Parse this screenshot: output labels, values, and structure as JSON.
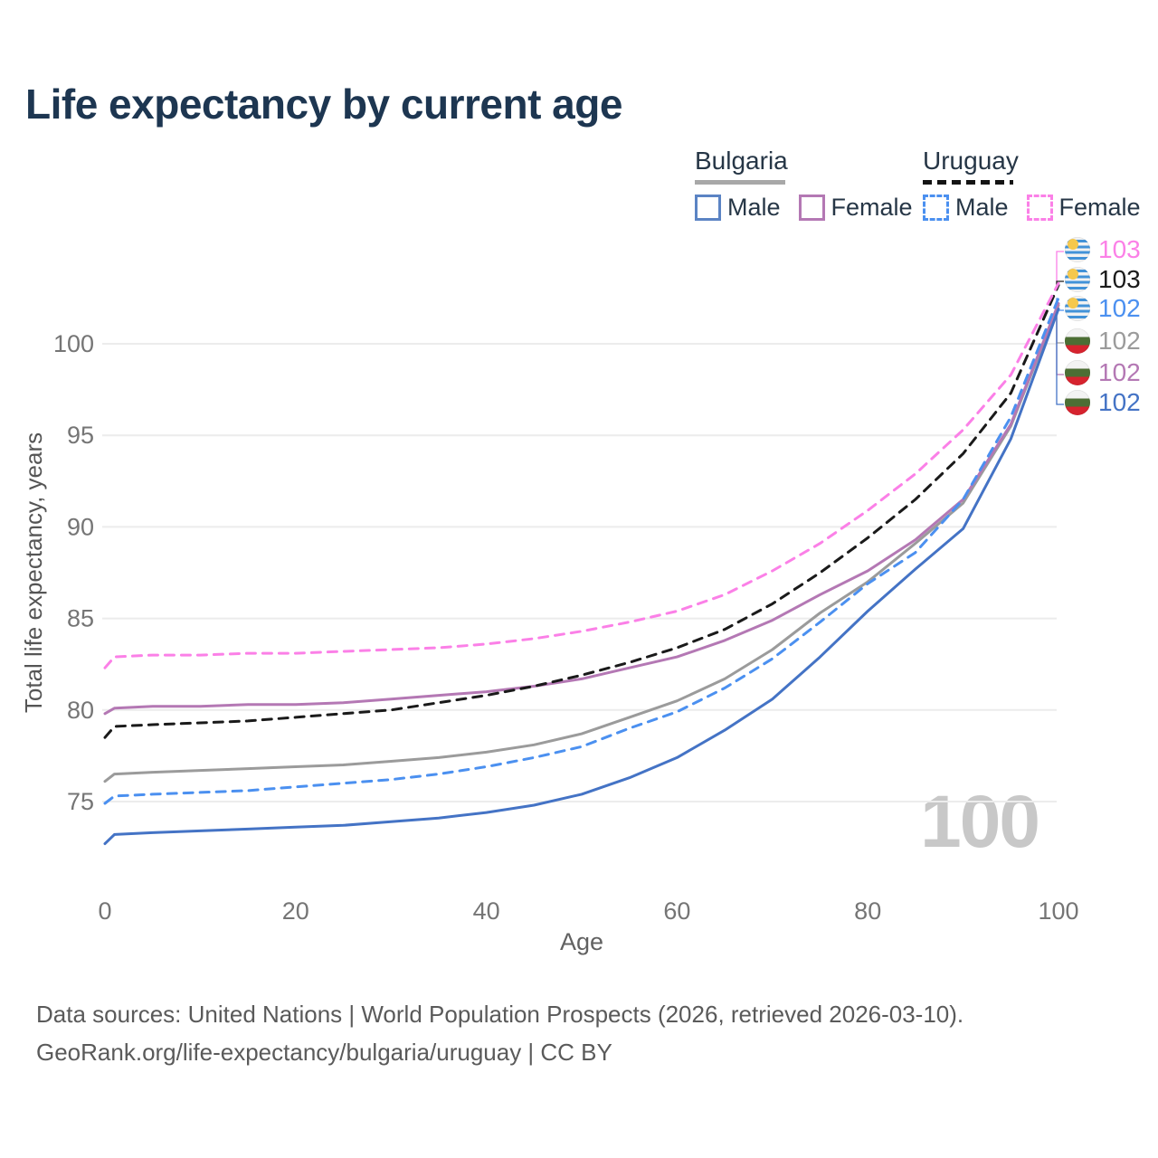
{
  "title": "Life expectancy by current age",
  "legend": {
    "groups": [
      {
        "label": "Bulgaria",
        "line_style": "solid",
        "line_color": "#a8a8a8",
        "items": [
          {
            "label": "Male",
            "color": "#4473c5"
          },
          {
            "label": "Female",
            "color": "#b478b4"
          }
        ]
      },
      {
        "label": "Uruguay",
        "line_style": "dashed",
        "line_color": "#141414",
        "items": [
          {
            "label": "Male",
            "color": "#4b90f0"
          },
          {
            "label": "Female",
            "color": "#fb80e7"
          }
        ]
      }
    ]
  },
  "watermark": "100",
  "end_labels": [
    {
      "value": "103",
      "country": "Uruguay",
      "color": "#fb80e7"
    },
    {
      "value": "103",
      "country": "Uruguay",
      "color": "#1a1a1a"
    },
    {
      "value": "102",
      "country": "Uruguay",
      "color": "#4b90f0"
    },
    {
      "value": "102",
      "country": "Bulgaria",
      "color": "#9b9b9b"
    },
    {
      "value": "102",
      "country": "Bulgaria",
      "color": "#b478b4"
    },
    {
      "value": "102",
      "country": "Bulgaria",
      "color": "#4473c5"
    }
  ],
  "footer": {
    "line1": "Data sources: United Nations | World Population Prospects (2026, retrieved 2026-03-10).",
    "line2": "GeoRank.org/life-expectancy/bulgaria/uruguay | CC BY"
  },
  "chart_data": {
    "type": "line",
    "title": "Life expectancy by current age",
    "xlabel": "Age",
    "ylabel": "Total life expectancy, years",
    "x_ticks": [
      0,
      20,
      40,
      60,
      80,
      100
    ],
    "y_ticks": [
      100,
      95,
      90,
      85,
      80,
      75
    ],
    "xlim": [
      0,
      100
    ],
    "ylim": [
      72,
      104
    ],
    "grid": "horizontal-only",
    "legend_position": "top-right",
    "ages": [
      0,
      1,
      5,
      10,
      15,
      20,
      25,
      30,
      35,
      40,
      45,
      50,
      55,
      60,
      65,
      70,
      75,
      80,
      85,
      90,
      95,
      100
    ],
    "series": [
      {
        "name": "Uruguay Female",
        "country": "Uruguay",
        "sex": "Female",
        "color": "#fb80e7",
        "dash": true,
        "end_label": "103",
        "values": [
          82.3,
          82.9,
          83.0,
          83.0,
          83.1,
          83.1,
          83.2,
          83.3,
          83.4,
          83.6,
          83.9,
          84.3,
          84.8,
          85.4,
          86.3,
          87.6,
          89.1,
          90.9,
          92.9,
          95.3,
          98.3,
          103.3
        ]
      },
      {
        "name": "Uruguay Both Sexes",
        "country": "Uruguay",
        "sex": "Total",
        "color": "#1a1a1a",
        "dash": true,
        "end_label": "103",
        "values": [
          78.5,
          79.1,
          79.2,
          79.3,
          79.4,
          79.6,
          79.8,
          80.0,
          80.4,
          80.8,
          81.3,
          81.9,
          82.6,
          83.4,
          84.4,
          85.8,
          87.5,
          89.4,
          91.5,
          94.0,
          97.3,
          103.2
        ]
      },
      {
        "name": "Uruguay Male",
        "country": "Uruguay",
        "sex": "Male",
        "color": "#4b90f0",
        "dash": true,
        "end_label": "102",
        "values": [
          74.9,
          75.3,
          75.4,
          75.5,
          75.6,
          75.8,
          76.0,
          76.2,
          76.5,
          76.9,
          77.4,
          78.0,
          79.0,
          79.9,
          81.2,
          82.8,
          84.8,
          86.9,
          88.6,
          91.5,
          96.0,
          102.5
        ]
      },
      {
        "name": "Bulgaria Both Sexes",
        "country": "Bulgaria",
        "sex": "Total",
        "color": "#9b9b9b",
        "dash": false,
        "end_label": "102",
        "values": [
          76.1,
          76.5,
          76.6,
          76.7,
          76.8,
          76.9,
          77.0,
          77.2,
          77.4,
          77.7,
          78.1,
          78.7,
          79.6,
          80.5,
          81.7,
          83.3,
          85.3,
          87.0,
          89.1,
          91.3,
          95.5,
          102.1
        ]
      },
      {
        "name": "Bulgaria Female",
        "country": "Bulgaria",
        "sex": "Female",
        "color": "#b478b4",
        "dash": false,
        "end_label": "102",
        "values": [
          79.8,
          80.1,
          80.2,
          80.2,
          80.3,
          80.3,
          80.4,
          80.6,
          80.8,
          81.0,
          81.3,
          81.7,
          82.3,
          82.9,
          83.8,
          84.9,
          86.3,
          87.6,
          89.3,
          91.5,
          95.6,
          102.2
        ]
      },
      {
        "name": "Bulgaria Male",
        "country": "Bulgaria",
        "sex": "Male",
        "color": "#4473c5",
        "dash": false,
        "end_label": "102",
        "values": [
          72.7,
          73.2,
          73.3,
          73.4,
          73.5,
          73.6,
          73.7,
          73.9,
          74.1,
          74.4,
          74.8,
          75.4,
          76.3,
          77.4,
          78.9,
          80.6,
          82.9,
          85.4,
          87.7,
          89.9,
          94.8,
          101.9
        ]
      }
    ]
  }
}
